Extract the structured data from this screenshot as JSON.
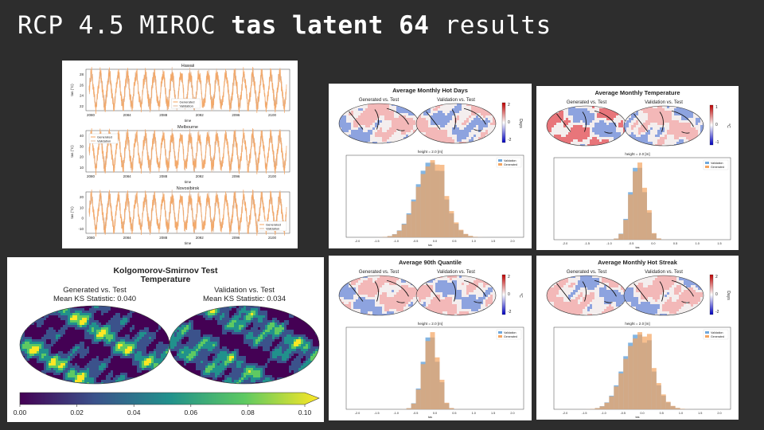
{
  "slide": {
    "title_plain": "RCP 4.5 MIROC ",
    "title_bold": "tas latent 64",
    "title_end": " results"
  },
  "timeseries": {
    "years": [
      "2080",
      "2084",
      "2088",
      "2092",
      "2096",
      "2100"
    ],
    "xlabel": "time",
    "ylabel": "tas (°C)",
    "legend": [
      "Generated",
      "Validation"
    ],
    "panels": [
      {
        "title": "Hawaii",
        "yticks": [
          "22",
          "24",
          "26",
          "28"
        ]
      },
      {
        "title": "Melbourne",
        "yticks": [
          "10",
          "20",
          "30",
          "40"
        ]
      },
      {
        "title": "Novosibirsk",
        "yticks": [
          "-10",
          "0",
          "10",
          "20"
        ]
      }
    ]
  },
  "ks": {
    "title": "Kolgomorov-Smirnov Test",
    "subtitle": "Temperature",
    "left_title": "Generated vs. Test",
    "left_stat": "Mean KS Statistic: 0.040",
    "right_title": "Validation vs. Test",
    "right_stat": "Mean KS Statistic: 0.034",
    "colorbar_ticks": [
      "0.00",
      "0.02",
      "0.04",
      "0.06",
      "0.08",
      "0.10"
    ]
  },
  "metric_panels": [
    {
      "title": "Average Monthly Hot Days",
      "left": "Generated vs. Test",
      "right": "Validation vs. Test",
      "unit": "Days",
      "cbar": [
        "2",
        "0",
        "-2"
      ],
      "hist_title": "height = 2.0 [m]",
      "legend": [
        "Validation",
        "Generated"
      ],
      "xlabel": "tas",
      "xticks": [
        "-2.0",
        "-1.5",
        "-1.0",
        "-0.5",
        "0.0",
        "0.5",
        "1.0",
        "1.5",
        "2.0"
      ]
    },
    {
      "title": "Average Monthly Temperature",
      "left": "Generated vs. Test",
      "right": "Validation vs. Test",
      "unit": "°C",
      "cbar": [
        "1",
        "0",
        "-1"
      ],
      "hist_title": "height = 2.0 [m]",
      "legend": [
        "Validation",
        "Generated"
      ],
      "xlabel": "tas",
      "xticks": [
        "-2.0",
        "-1.5",
        "-1.0",
        "-0.5",
        "0.0",
        "0.5",
        "1.0",
        "1.5"
      ]
    },
    {
      "title": "Average 90th Quantile",
      "left": "Generated vs. Test",
      "right": "Validation vs. Test",
      "unit": "°C",
      "cbar": [
        "2",
        "0",
        "-2"
      ],
      "hist_title": "height = 2.0 [m]",
      "legend": [
        "Validation",
        "Generated"
      ],
      "xlabel": "tas",
      "xticks": [
        "-2.0",
        "-1.5",
        "-1.0",
        "-0.5",
        "0.0",
        "0.5",
        "1.0",
        "1.5",
        "2.0"
      ]
    },
    {
      "title": "Average Monthly Hot Streak",
      "left": "Generated vs. Test",
      "right": "Validation vs. Test",
      "unit": "Days",
      "cbar": [
        "2",
        "0",
        "-2"
      ],
      "hist_title": "height = 2.0 [m]",
      "legend": [
        "Validation",
        "Generated"
      ],
      "xlabel": "tas",
      "xticks": [
        "-2.0",
        "-1.5",
        "-1.0",
        "-0.5",
        "0.0",
        "0.5",
        "1.0",
        "1.5",
        "2.0"
      ]
    }
  ],
  "colors": {
    "background": "#2d2d2d",
    "generated": "#f4a460",
    "validation": "#6fa8dc",
    "viridis": [
      "#440154",
      "#3b528b",
      "#21918c",
      "#5ec962",
      "#fde725"
    ]
  }
}
